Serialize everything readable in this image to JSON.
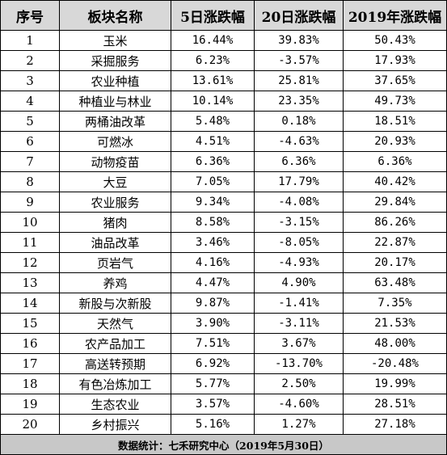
{
  "headers": [
    "序号",
    "板块名称",
    "5日涨跌幅",
    "20日涨跌幅",
    "2019年涨跌幅"
  ],
  "rows": [
    [
      "1",
      "玉米",
      "16.44%",
      "39.83%",
      "50.43%"
    ],
    [
      "2",
      "采掘服务",
      "6.23%",
      "-3.57%",
      "17.93%"
    ],
    [
      "3",
      "农业种植",
      "13.61%",
      "25.81%",
      "37.65%"
    ],
    [
      "4",
      "种植业与林业",
      "10.14%",
      "23.35%",
      "49.73%"
    ],
    [
      "5",
      "两桶油改革",
      "5.48%",
      "0.18%",
      "18.51%"
    ],
    [
      "6",
      "可燃冰",
      "4.51%",
      "-4.63%",
      "20.93%"
    ],
    [
      "7",
      "动物疫苗",
      "6.36%",
      "6.36%",
      "6.36%"
    ],
    [
      "8",
      "大豆",
      "7.05%",
      "17.79%",
      "40.42%"
    ],
    [
      "9",
      "农业服务",
      "9.34%",
      "-4.08%",
      "29.84%"
    ],
    [
      "10",
      "猪肉",
      "8.58%",
      "-3.15%",
      "86.26%"
    ],
    [
      "11",
      "油品改革",
      "3.46%",
      "-8.05%",
      "22.87%"
    ],
    [
      "12",
      "页岩气",
      "4.16%",
      "-4.93%",
      "20.17%"
    ],
    [
      "13",
      "养鸡",
      "4.47%",
      "4.90%",
      "63.48%"
    ],
    [
      "14",
      "新股与次新股",
      "9.87%",
      "-1.41%",
      "7.35%"
    ],
    [
      "15",
      "天然气",
      "3.90%",
      "-3.11%",
      "21.53%"
    ],
    [
      "16",
      "农产品加工",
      "7.51%",
      "3.67%",
      "48.00%"
    ],
    [
      "17",
      "高送转预期",
      "6.92%",
      "-13.70%",
      "-20.48%"
    ],
    [
      "18",
      "有色冶炼加工",
      "5.77%",
      "2.50%",
      "19.99%"
    ],
    [
      "19",
      "生态农业",
      "3.57%",
      "-4.60%",
      "28.51%"
    ],
    [
      "20",
      "乡村振兴",
      "5.16%",
      "1.27%",
      "27.18%"
    ]
  ],
  "footer": "数据统计：七禾研究中心（2019年5月30日）"
}
